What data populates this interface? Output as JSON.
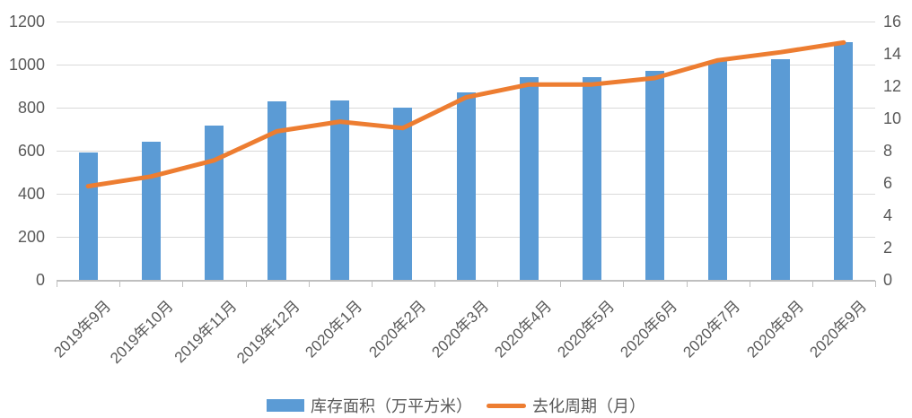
{
  "chart_data": {
    "type": "combo",
    "subtype": [
      "bar",
      "line"
    ],
    "categories": [
      "2019年9月",
      "2019年10月",
      "2019年11月",
      "2019年12月",
      "2020年1月",
      "2020年2月",
      "2020年3月",
      "2020年4月",
      "2020年5月",
      "2020年6月",
      "2020年7月",
      "2020年8月",
      "2020年9月"
    ],
    "series": [
      {
        "name": "库存面积（万平方米）",
        "type": "bar",
        "axis": "left",
        "color": "#5b9bd5",
        "values": [
          590,
          640,
          715,
          830,
          835,
          800,
          870,
          940,
          940,
          970,
          1015,
          1025,
          1105
        ]
      },
      {
        "name": "去化周期（月）",
        "type": "line",
        "axis": "right",
        "color": "#ed7d31",
        "values": [
          5.8,
          6.4,
          7.4,
          9.2,
          9.8,
          9.4,
          11.3,
          12.1,
          12.1,
          12.5,
          13.6,
          14.1,
          14.7
        ]
      }
    ],
    "left_axis": {
      "min": 0,
      "max": 1200,
      "step": 200,
      "ticks": [
        1200,
        1000,
        800,
        600,
        400,
        200,
        0
      ]
    },
    "right_axis": {
      "min": 0,
      "max": 16,
      "step": 2,
      "ticks": [
        16,
        14,
        12,
        10,
        8,
        6,
        4,
        2,
        0
      ]
    },
    "grid": true,
    "legend_position": "bottom",
    "x_label_rotation_deg": -45
  },
  "colors": {
    "bar": "#5b9bd5",
    "line": "#ed7d31",
    "gridline": "#d9d9d9",
    "axis_line": "#bfbfbf",
    "text": "#595959",
    "background": "#ffffff"
  }
}
